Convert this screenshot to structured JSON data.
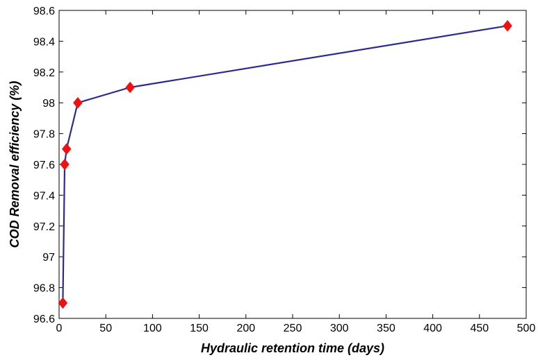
{
  "chart_data": {
    "type": "line",
    "title": "",
    "xlabel": "Hydraulic retention time (days)",
    "ylabel": "COD Removal efficiency (%)",
    "xlim": [
      0,
      500
    ],
    "ylim": [
      96.6,
      98.6
    ],
    "xticks": [
      "0",
      "50",
      "100",
      "150",
      "200",
      "250",
      "300",
      "350",
      "400",
      "450",
      "500"
    ],
    "yticks": [
      "96.6",
      "96.8",
      "97",
      "97.2",
      "97.4",
      "97.6",
      "97.8",
      "98",
      "98.2",
      "98.4",
      "98.6"
    ],
    "grid": false,
    "legend": "none",
    "series": [
      {
        "x": [
          4,
          6,
          8,
          20,
          76,
          480
        ],
        "y": [
          96.7,
          97.6,
          97.7,
          98.0,
          98.1,
          98.5
        ],
        "line_color": "#2b2b8f",
        "marker": "diamond",
        "marker_color": "#ee1111"
      }
    ]
  }
}
